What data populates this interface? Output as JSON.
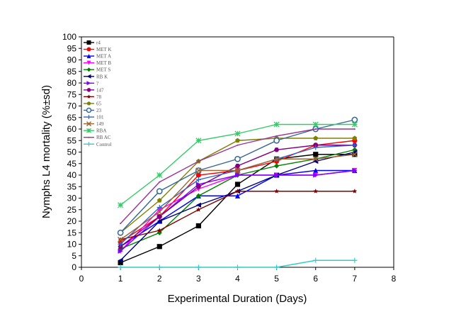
{
  "chart_data": {
    "type": "line",
    "xlabel": "Experimental Duration (Days)",
    "ylabel": "Nymphs L4 mortality (%±sd)",
    "xlim": [
      0,
      8
    ],
    "ylim": [
      0,
      100
    ],
    "x_ticks": [
      "0",
      "1",
      "2",
      "3",
      "4",
      "5",
      "6",
      "7",
      "8"
    ],
    "y_ticks": [
      "0",
      "5",
      "10",
      "15",
      "20",
      "25",
      "30",
      "35",
      "40",
      "45",
      "50",
      "55",
      "60",
      "65",
      "70",
      "75",
      "80",
      "85",
      "90",
      "95",
      "100"
    ],
    "grid": false,
    "legend_position": "top-left",
    "x": [
      1,
      2,
      3,
      4,
      5,
      6,
      7
    ],
    "series": [
      {
        "name": "r4",
        "color": "#000000",
        "marker": "square",
        "values": [
          2,
          9,
          18,
          36,
          47,
          49,
          49
        ]
      },
      {
        "name": "MET K",
        "color": "#ff0000",
        "marker": "circle",
        "values": [
          11,
          22,
          40,
          42,
          46,
          53,
          55
        ]
      },
      {
        "name": "MET A",
        "color": "#0000ff",
        "marker": "triangle-up",
        "values": [
          9,
          20,
          31,
          31,
          40,
          42,
          42
        ]
      },
      {
        "name": "MET B",
        "color": "#ff00ff",
        "marker": "triangle-down",
        "values": [
          7,
          25,
          34,
          40,
          40,
          40,
          42
        ]
      },
      {
        "name": "MET S",
        "color": "#008000",
        "marker": "diamond",
        "values": [
          8,
          15,
          31,
          40,
          44,
          47,
          51
        ]
      },
      {
        "name": "RB K",
        "color": "#000080",
        "marker": "triangle-left",
        "values": [
          3,
          20,
          27,
          33,
          40,
          46,
          50
        ]
      },
      {
        "name": "?",
        "color": "#8000ff",
        "marker": "triangle-right",
        "values": [
          7,
          22,
          36,
          40,
          40,
          40,
          42
        ]
      },
      {
        "name": "147",
        "color": "#800080",
        "marker": "hexagon",
        "values": [
          9,
          22,
          35,
          44,
          51,
          53,
          53
        ]
      },
      {
        "name": "78",
        "color": "#800000",
        "marker": "star",
        "values": [
          12,
          16,
          25,
          33,
          33,
          33,
          33
        ]
      },
      {
        "name": "65",
        "color": "#808000",
        "marker": "pentagon",
        "values": [
          15,
          29,
          46,
          55,
          56,
          56,
          56
        ]
      },
      {
        "name": "23",
        "color": "#336699",
        "marker": "circle-open",
        "values": [
          15,
          33,
          42,
          47,
          55,
          60,
          64
        ]
      },
      {
        "name": "101",
        "color": "#3366cc",
        "marker": "dash",
        "values": [
          10,
          26,
          38,
          42,
          47,
          52,
          53
        ]
      },
      {
        "name": "149",
        "color": "#996633",
        "marker": "cross",
        "values": [
          12,
          24,
          42,
          42,
          47,
          47,
          49
        ]
      },
      {
        "name": "RBA",
        "color": "#33cc66",
        "marker": "asterisk",
        "values": [
          27,
          40,
          55,
          58,
          62,
          62,
          62
        ]
      },
      {
        "name": "RB AC",
        "color": "#993399",
        "marker": "none",
        "values": [
          19,
          37,
          46,
          53,
          57,
          60,
          60
        ]
      },
      {
        "name": "Control",
        "color": "#33cccc",
        "marker": "dash",
        "values": [
          0,
          0,
          0,
          0,
          0,
          3,
          3
        ]
      }
    ]
  }
}
